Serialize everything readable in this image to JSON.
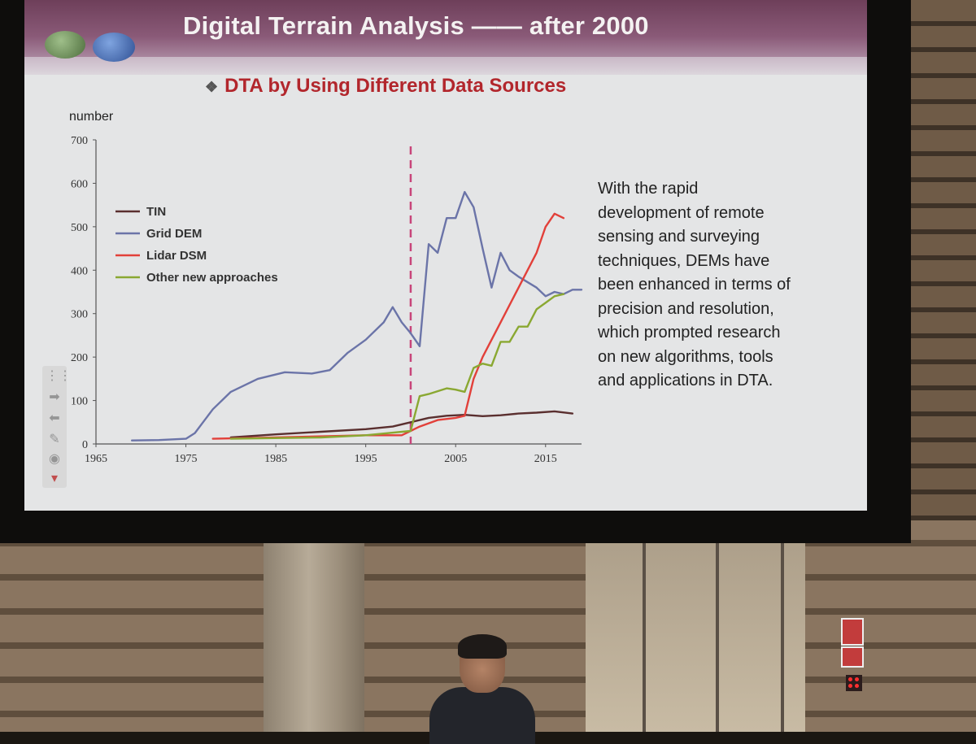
{
  "slide": {
    "title": "Digital Terrain Analysis —— after 2000",
    "subtitle": "DTA by Using Different Data Sources",
    "subtitle_bullet": "❖",
    "description_lines": [
      "With the rapid",
      "development of remote",
      "sensing and surveying",
      "techniques,  DEMs have",
      "been enhanced in terms of",
      "precision and resolution,",
      "which prompted research",
      "on new algorithms, tools",
      "and applications in DTA."
    ]
  },
  "colors": {
    "tin": "#5a2f2f",
    "grid_dem": "#6b74a8",
    "lidar_dsm": "#e2403a",
    "other": "#8aa832",
    "divider": "#c8457a"
  },
  "chart_data": {
    "type": "line",
    "ylabel": "number",
    "xlabel": "",
    "xlim": [
      1965,
      2019
    ],
    "ylim": [
      0,
      700
    ],
    "x_ticks": [
      1965,
      1975,
      1985,
      1995,
      2005,
      2015
    ],
    "y_ticks": [
      0,
      100,
      200,
      300,
      400,
      500,
      600,
      700
    ],
    "reference_line_x": 2000,
    "legend_position": "top-left",
    "series": [
      {
        "name": "TIN",
        "color": "#5a2f2f",
        "points": [
          [
            1980,
            15
          ],
          [
            1985,
            22
          ],
          [
            1990,
            28
          ],
          [
            1995,
            34
          ],
          [
            1998,
            40
          ],
          [
            2000,
            50
          ],
          [
            2002,
            60
          ],
          [
            2004,
            65
          ],
          [
            2006,
            67
          ],
          [
            2008,
            64
          ],
          [
            2010,
            66
          ],
          [
            2012,
            70
          ],
          [
            2014,
            72
          ],
          [
            2016,
            75
          ],
          [
            2018,
            70
          ]
        ]
      },
      {
        "name": "Grid DEM",
        "color": "#6b74a8",
        "points": [
          [
            1969,
            8
          ],
          [
            1972,
            9
          ],
          [
            1975,
            12
          ],
          [
            1976,
            25
          ],
          [
            1978,
            80
          ],
          [
            1980,
            120
          ],
          [
            1983,
            150
          ],
          [
            1986,
            165
          ],
          [
            1989,
            162
          ],
          [
            1991,
            170
          ],
          [
            1993,
            210
          ],
          [
            1995,
            240
          ],
          [
            1997,
            280
          ],
          [
            1998,
            315
          ],
          [
            1999,
            280
          ],
          [
            2000,
            255
          ],
          [
            2001,
            225
          ],
          [
            2002,
            460
          ],
          [
            2003,
            440
          ],
          [
            2004,
            520
          ],
          [
            2005,
            520
          ],
          [
            2006,
            580
          ],
          [
            2007,
            545
          ],
          [
            2008,
            450
          ],
          [
            2009,
            360
          ],
          [
            2010,
            440
          ],
          [
            2011,
            400
          ],
          [
            2012,
            385
          ],
          [
            2014,
            360
          ],
          [
            2015,
            340
          ],
          [
            2016,
            350
          ],
          [
            2017,
            345
          ],
          [
            2018,
            355
          ],
          [
            2019,
            355
          ]
        ]
      },
      {
        "name": "Lidar DSM",
        "color": "#e2403a",
        "points": [
          [
            1978,
            12
          ],
          [
            1985,
            15
          ],
          [
            1995,
            20
          ],
          [
            1999,
            20
          ],
          [
            2001,
            40
          ],
          [
            2003,
            55
          ],
          [
            2005,
            60
          ],
          [
            2006,
            65
          ],
          [
            2007,
            150
          ],
          [
            2008,
            200
          ],
          [
            2010,
            280
          ],
          [
            2012,
            360
          ],
          [
            2014,
            440
          ],
          [
            2015,
            500
          ],
          [
            2016,
            530
          ],
          [
            2017,
            520
          ]
        ]
      },
      {
        "name": "Other new approaches",
        "color": "#8aa832",
        "points": [
          [
            1980,
            12
          ],
          [
            1990,
            15
          ],
          [
            1995,
            20
          ],
          [
            2000,
            30
          ],
          [
            2001,
            110
          ],
          [
            2002,
            115
          ],
          [
            2004,
            128
          ],
          [
            2005,
            125
          ],
          [
            2006,
            120
          ],
          [
            2007,
            175
          ],
          [
            2008,
            185
          ],
          [
            2009,
            180
          ],
          [
            2010,
            235
          ],
          [
            2011,
            235
          ],
          [
            2012,
            270
          ],
          [
            2013,
            270
          ],
          [
            2014,
            310
          ],
          [
            2015,
            325
          ],
          [
            2016,
            340
          ],
          [
            2017,
            345
          ]
        ]
      }
    ]
  }
}
